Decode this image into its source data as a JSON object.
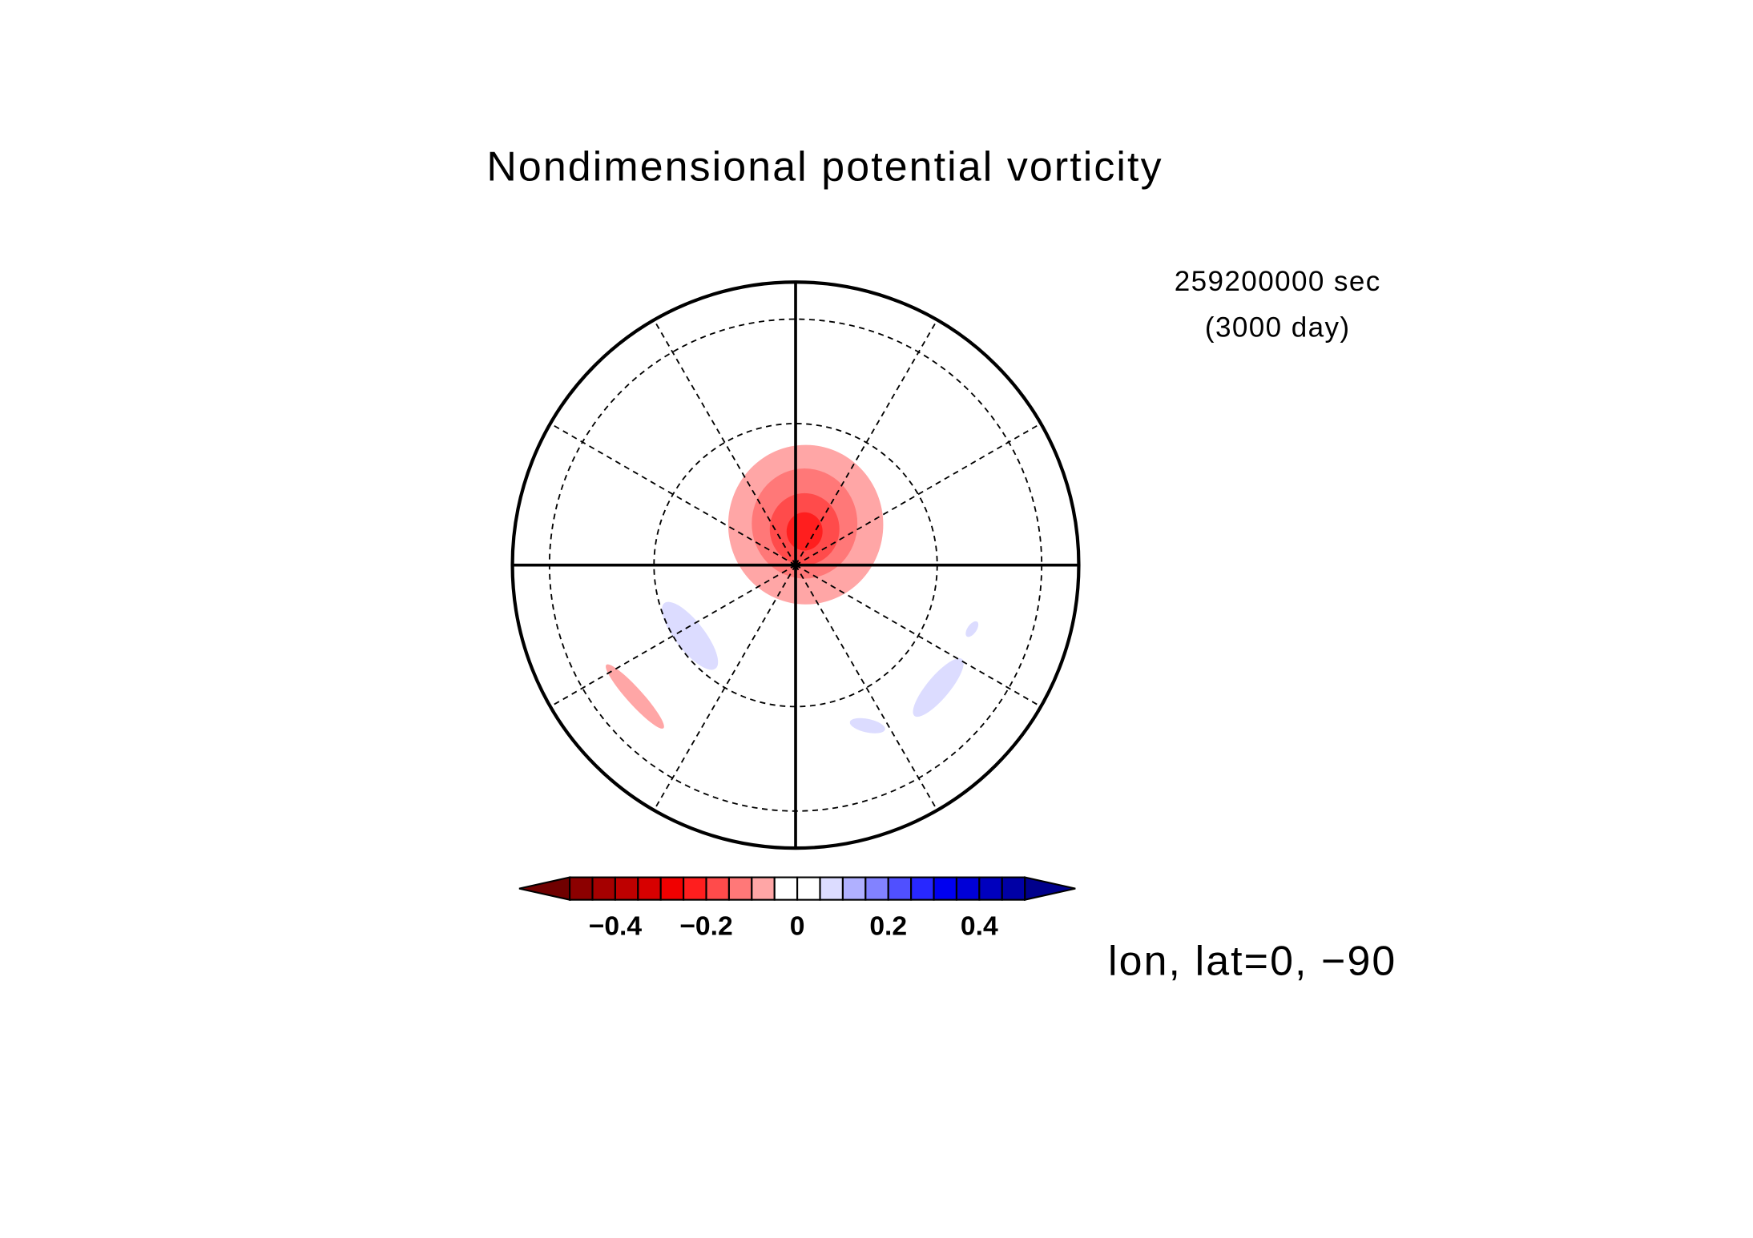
{
  "chart_data": {
    "type": "contour",
    "title": "Nondimensional potential vorticity",
    "annotations": [
      "259200000 sec",
      "(3000 day)"
    ],
    "xlabel": "lon, lat=0, −90",
    "colorbar": {
      "levels": [
        -0.5,
        -0.45,
        -0.4,
        -0.35,
        -0.3,
        -0.25,
        -0.2,
        -0.15,
        -0.1,
        -0.05,
        0,
        0.05,
        0.1,
        0.15,
        0.2,
        0.25,
        0.3,
        0.35,
        0.4,
        0.45,
        0.5
      ],
      "colors": [
        "#8c0000",
        "#a50000",
        "#be0000",
        "#d70000",
        "#f00000",
        "#ff1e1e",
        "#ff4b4b",
        "#ff7878",
        "#ffa6a6",
        "#ffffff",
        "#ffffff",
        "#dcdcff",
        "#b0b0ff",
        "#8282ff",
        "#5050ff",
        "#2828ff",
        "#0000f0",
        "#0000d7",
        "#0000be",
        "#0000a5"
      ],
      "under_color": "#700000",
      "over_color": "#00008c",
      "ticks": [
        {
          "value": -0.4,
          "label": "−0.4"
        },
        {
          "value": -0.2,
          "label": "−0.2"
        },
        0,
        0.2,
        0.4
      ]
    }
  }
}
